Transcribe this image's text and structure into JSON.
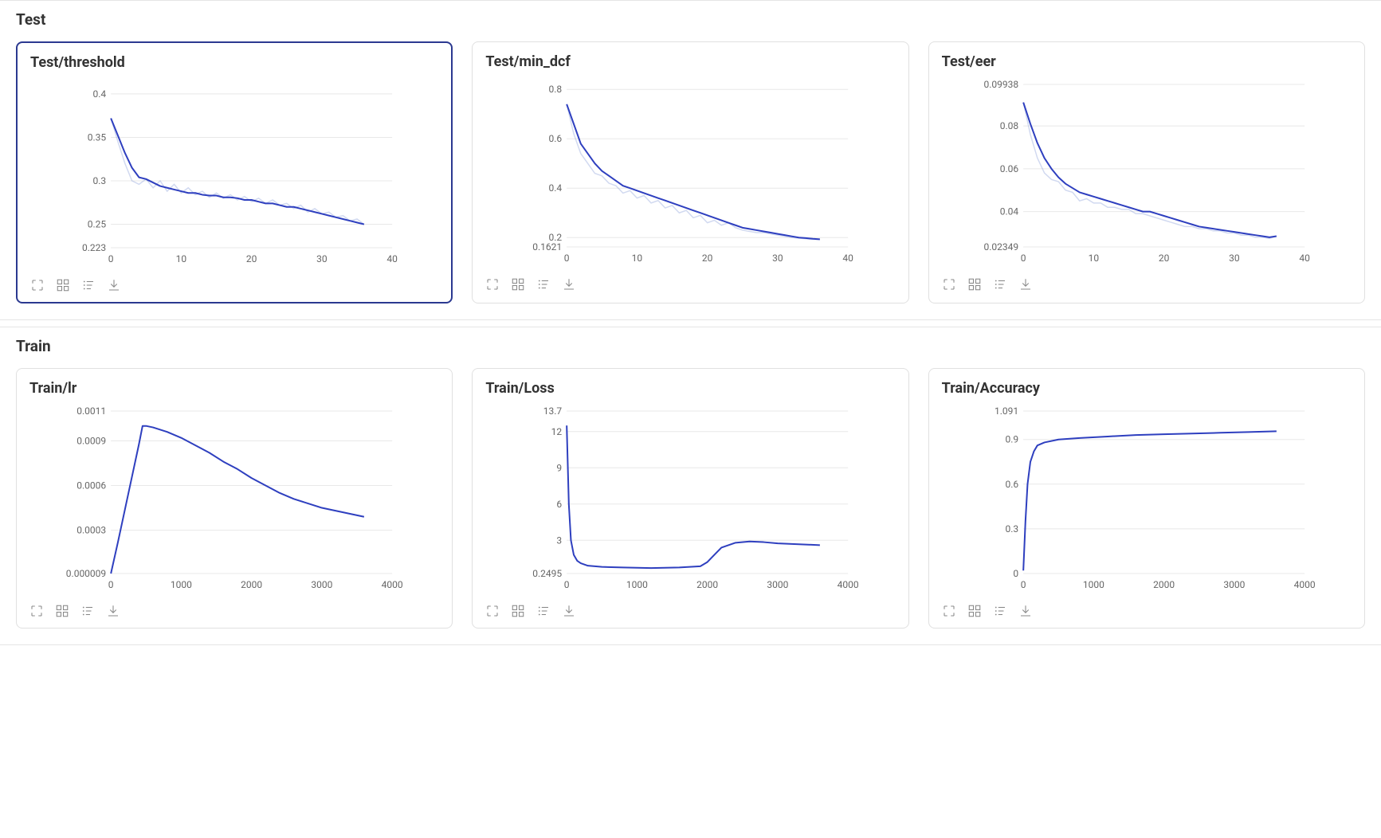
{
  "page": {
    "background": "#ffffff",
    "font_family": "Segoe UI, -apple-system, sans-serif"
  },
  "sections": [
    {
      "title": "Test",
      "charts": [
        "test_threshold",
        "test_min_dcf",
        "test_eer"
      ]
    },
    {
      "title": "Train",
      "charts": [
        "train_lr",
        "train_loss",
        "train_accuracy"
      ]
    }
  ],
  "chart_common": {
    "title_fontsize": 18,
    "title_fontweight": 700,
    "title_color": "#333333",
    "axis_label_fontsize": 12,
    "axis_label_color": "#666666",
    "grid_color": "#e8e8e8",
    "axis_color": "#e8e8e8",
    "background_color": "#ffffff",
    "line_width": 2,
    "smooth_line_width": 1.5,
    "smooth_line_opacity": 0.4
  },
  "charts": {
    "test_threshold": {
      "title": "Test/threshold",
      "type": "line",
      "highlighted": true,
      "xlim": [
        0,
        40
      ],
      "ylim": [
        0.223,
        0.41
      ],
      "xticks": [
        0,
        10,
        20,
        30,
        40
      ],
      "yticks": [
        0.223,
        0.25,
        0.3,
        0.35,
        0.4
      ],
      "ytick_labels": [
        "0.223",
        "0.25",
        "0.3",
        "0.35",
        "0.4"
      ],
      "main_color": "#2e3fbf",
      "smooth_color": "#8b9fd9",
      "x": [
        0,
        1,
        2,
        3,
        4,
        5,
        6,
        7,
        8,
        9,
        10,
        11,
        12,
        13,
        14,
        15,
        16,
        17,
        18,
        19,
        20,
        21,
        22,
        23,
        24,
        25,
        26,
        27,
        28,
        29,
        30,
        31,
        32,
        33,
        34,
        35,
        36
      ],
      "y": [
        0.372,
        0.352,
        0.332,
        0.315,
        0.304,
        0.302,
        0.298,
        0.294,
        0.292,
        0.29,
        0.288,
        0.286,
        0.286,
        0.284,
        0.283,
        0.283,
        0.281,
        0.281,
        0.28,
        0.278,
        0.278,
        0.276,
        0.274,
        0.274,
        0.272,
        0.27,
        0.27,
        0.268,
        0.266,
        0.264,
        0.262,
        0.26,
        0.258,
        0.256,
        0.254,
        0.252,
        0.25
      ],
      "y_raw": [
        0.372,
        0.345,
        0.32,
        0.3,
        0.296,
        0.302,
        0.292,
        0.3,
        0.288,
        0.296,
        0.286,
        0.292,
        0.284,
        0.288,
        0.281,
        0.286,
        0.28,
        0.284,
        0.278,
        0.282,
        0.276,
        0.28,
        0.274,
        0.278,
        0.272,
        0.274,
        0.268,
        0.272,
        0.264,
        0.268,
        0.262,
        0.264,
        0.258,
        0.26,
        0.254,
        0.256,
        0.25
      ]
    },
    "test_min_dcf": {
      "title": "Test/min_dcf",
      "type": "line",
      "highlighted": false,
      "xlim": [
        0,
        40
      ],
      "ylim": [
        0.1621,
        0.82
      ],
      "xticks": [
        0,
        10,
        20,
        30,
        40
      ],
      "yticks": [
        0.1621,
        0.2,
        0.4,
        0.6,
        0.8
      ],
      "ytick_labels": [
        "0.1621",
        "0.2",
        "0.4",
        "0.6",
        "0.8"
      ],
      "main_color": "#2e3fbf",
      "smooth_color": "#8b9fd9",
      "x": [
        0,
        1,
        2,
        3,
        4,
        5,
        6,
        7,
        8,
        9,
        10,
        11,
        12,
        13,
        14,
        15,
        16,
        17,
        18,
        19,
        20,
        21,
        22,
        23,
        24,
        25,
        26,
        27,
        28,
        29,
        30,
        31,
        32,
        33,
        34,
        35,
        36
      ],
      "y": [
        0.74,
        0.66,
        0.58,
        0.54,
        0.5,
        0.47,
        0.45,
        0.43,
        0.41,
        0.4,
        0.39,
        0.38,
        0.37,
        0.36,
        0.35,
        0.34,
        0.33,
        0.32,
        0.31,
        0.3,
        0.29,
        0.28,
        0.27,
        0.26,
        0.25,
        0.24,
        0.235,
        0.23,
        0.225,
        0.22,
        0.215,
        0.21,
        0.205,
        0.2,
        0.198,
        0.195,
        0.193
      ],
      "y_raw": [
        0.74,
        0.62,
        0.54,
        0.5,
        0.46,
        0.45,
        0.42,
        0.41,
        0.38,
        0.39,
        0.36,
        0.37,
        0.34,
        0.35,
        0.32,
        0.33,
        0.3,
        0.31,
        0.28,
        0.29,
        0.26,
        0.27,
        0.25,
        0.26,
        0.24,
        0.23,
        0.225,
        0.22,
        0.22,
        0.215,
        0.21,
        0.205,
        0.2,
        0.198,
        0.195,
        0.193,
        0.192
      ]
    },
    "test_eer": {
      "title": "Test/eer",
      "type": "line",
      "highlighted": false,
      "xlim": [
        0,
        40
      ],
      "ylim": [
        0.02349,
        0.09938
      ],
      "xticks": [
        0,
        10,
        20,
        30,
        40
      ],
      "yticks": [
        0.02349,
        0.04,
        0.06,
        0.08,
        0.09938
      ],
      "ytick_labels": [
        "0.02349",
        "0.04",
        "0.06",
        "0.08",
        "0.09938"
      ],
      "main_color": "#2e3fbf",
      "smooth_color": "#8b9fd9",
      "x": [
        0,
        1,
        2,
        3,
        4,
        5,
        6,
        7,
        8,
        9,
        10,
        11,
        12,
        13,
        14,
        15,
        16,
        17,
        18,
        19,
        20,
        21,
        22,
        23,
        24,
        25,
        26,
        27,
        28,
        29,
        30,
        31,
        32,
        33,
        34,
        35,
        36
      ],
      "y": [
        0.091,
        0.081,
        0.072,
        0.065,
        0.06,
        0.056,
        0.053,
        0.051,
        0.049,
        0.048,
        0.047,
        0.046,
        0.045,
        0.044,
        0.043,
        0.042,
        0.041,
        0.04,
        0.04,
        0.039,
        0.038,
        0.037,
        0.036,
        0.035,
        0.034,
        0.033,
        0.0325,
        0.032,
        0.0315,
        0.031,
        0.0305,
        0.03,
        0.0295,
        0.029,
        0.0285,
        0.028,
        0.0285
      ],
      "y_raw": [
        0.091,
        0.076,
        0.065,
        0.058,
        0.055,
        0.054,
        0.05,
        0.049,
        0.045,
        0.046,
        0.044,
        0.044,
        0.042,
        0.042,
        0.041,
        0.041,
        0.039,
        0.039,
        0.038,
        0.037,
        0.036,
        0.035,
        0.034,
        0.033,
        0.033,
        0.032,
        0.032,
        0.031,
        0.031,
        0.03,
        0.03,
        0.029,
        0.029,
        0.028,
        0.028,
        0.0275,
        0.0285
      ]
    },
    "train_lr": {
      "title": "Train/lr",
      "type": "line",
      "highlighted": false,
      "xlim": [
        0,
        4000
      ],
      "ylim": [
        9e-06,
        0.0011
      ],
      "xticks": [
        0,
        1000,
        2000,
        3000,
        4000
      ],
      "yticks": [
        9e-06,
        0.0003,
        0.0006,
        0.0009,
        0.0011
      ],
      "ytick_labels": [
        "0.000009",
        "0.0003",
        "0.0006",
        "0.0009",
        "0.0011"
      ],
      "main_color": "#2e3fbf",
      "smooth_color": null,
      "x": [
        0,
        100,
        200,
        300,
        400,
        450,
        500,
        600,
        800,
        1000,
        1200,
        1400,
        1600,
        1800,
        2000,
        2200,
        2400,
        2600,
        2800,
        3000,
        3200,
        3400,
        3600
      ],
      "y": [
        9e-06,
        0.00022,
        0.00044,
        0.00066,
        0.00088,
        0.001,
        0.001,
        0.00099,
        0.00096,
        0.00092,
        0.00087,
        0.00082,
        0.00076,
        0.00071,
        0.00065,
        0.0006,
        0.00055,
        0.00051,
        0.00048,
        0.00045,
        0.00043,
        0.00041,
        0.00039
      ]
    },
    "train_loss": {
      "title": "Train/Loss",
      "type": "line",
      "highlighted": false,
      "xlim": [
        0,
        4000
      ],
      "ylim": [
        0.2495,
        13.7
      ],
      "xticks": [
        0,
        1000,
        2000,
        3000,
        4000
      ],
      "yticks": [
        0.2495,
        3,
        6,
        9,
        12,
        13.7
      ],
      "ytick_labels": [
        "0.2495",
        "3",
        "6",
        "9",
        "12",
        "13.7"
      ],
      "main_color": "#2e3fbf",
      "smooth_color": null,
      "x": [
        0,
        30,
        60,
        100,
        150,
        200,
        300,
        500,
        800,
        1200,
        1600,
        1900,
        2000,
        2100,
        2200,
        2400,
        2600,
        2800,
        3000,
        3200,
        3400,
        3600
      ],
      "y": [
        12.5,
        6.0,
        3.0,
        1.8,
        1.3,
        1.1,
        0.9,
        0.8,
        0.75,
        0.7,
        0.75,
        0.85,
        1.2,
        1.8,
        2.4,
        2.8,
        2.9,
        2.85,
        2.75,
        2.7,
        2.65,
        2.6
      ],
      "y_raw": [
        12.5,
        6.0,
        3.0,
        1.8,
        1.3,
        1.1,
        0.9,
        0.8,
        0.75,
        0.7,
        0.75,
        0.85,
        1.2,
        1.8,
        2.4,
        2.85,
        2.95,
        2.75,
        2.85,
        2.65,
        2.75,
        2.55
      ]
    },
    "train_accuracy": {
      "title": "Train/Accuracy",
      "type": "line",
      "highlighted": false,
      "xlim": [
        0,
        4000
      ],
      "ylim": [
        0,
        1.091
      ],
      "xticks": [
        0,
        1000,
        2000,
        3000,
        4000
      ],
      "yticks": [
        0,
        0.3,
        0.6,
        0.9,
        1.091
      ],
      "ytick_labels": [
        "0",
        "0.3",
        "0.6",
        "0.9",
        "1.091"
      ],
      "main_color": "#2e3fbf",
      "smooth_color": null,
      "x": [
        0,
        30,
        60,
        100,
        150,
        200,
        300,
        500,
        800,
        1200,
        1600,
        2000,
        2400,
        2800,
        3200,
        3600
      ],
      "y": [
        0.02,
        0.35,
        0.6,
        0.75,
        0.82,
        0.86,
        0.88,
        0.9,
        0.91,
        0.92,
        0.93,
        0.935,
        0.94,
        0.945,
        0.95,
        0.955
      ],
      "y_raw": [
        0.02,
        0.35,
        0.6,
        0.75,
        0.82,
        0.86,
        0.88,
        0.9,
        0.915,
        0.92,
        0.935,
        0.93,
        0.945,
        0.94,
        0.955,
        0.95
      ]
    }
  },
  "toolbar": {
    "icons": [
      "expand-icon",
      "grid-icon",
      "list-icon",
      "download-icon"
    ]
  }
}
